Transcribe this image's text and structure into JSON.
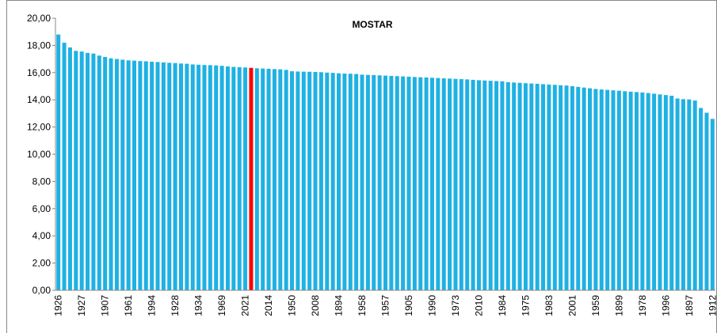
{
  "chart_data": {
    "type": "bar",
    "title": "MOSTAR",
    "categories": [
      "1926",
      null,
      null,
      null,
      "1927",
      null,
      null,
      null,
      "1907",
      null,
      null,
      null,
      "1961",
      null,
      null,
      null,
      "1994",
      null,
      null,
      null,
      "1928",
      null,
      null,
      null,
      "1934",
      null,
      null,
      null,
      "1969",
      null,
      null,
      null,
      "2021",
      null,
      null,
      null,
      "2014",
      null,
      null,
      null,
      "1950",
      null,
      null,
      null,
      "2008",
      null,
      null,
      null,
      "1894",
      null,
      null,
      null,
      "1958",
      null,
      null,
      null,
      "1957",
      null,
      null,
      null,
      "1905",
      null,
      null,
      null,
      "1990",
      null,
      null,
      null,
      "1973",
      null,
      null,
      null,
      "2010",
      null,
      null,
      null,
      "1984",
      null,
      null,
      null,
      "1975",
      null,
      null,
      null,
      "1983",
      null,
      null,
      null,
      "2001",
      null,
      null,
      null,
      "1959",
      null,
      null,
      null,
      "1899",
      null,
      null,
      null,
      "1978",
      null,
      null,
      null,
      "1996",
      null,
      null,
      null,
      "1897",
      null,
      null,
      null,
      "1912"
    ],
    "values": [
      18.8,
      18.2,
      17.85,
      17.6,
      17.55,
      17.45,
      17.4,
      17.25,
      17.15,
      17.05,
      17.0,
      16.95,
      16.9,
      16.88,
      16.85,
      16.83,
      16.8,
      16.78,
      16.75,
      16.72,
      16.7,
      16.67,
      16.65,
      16.6,
      16.58,
      16.56,
      16.55,
      16.53,
      16.5,
      16.45,
      16.42,
      16.4,
      16.38,
      16.35,
      16.32,
      16.3,
      16.28,
      16.26,
      16.24,
      16.2,
      16.1,
      16.08,
      16.07,
      16.06,
      16.05,
      16.03,
      16.0,
      15.98,
      15.95,
      15.93,
      15.92,
      15.9,
      15.85,
      15.83,
      15.82,
      15.8,
      15.78,
      15.76,
      15.74,
      15.72,
      15.7,
      15.68,
      15.66,
      15.64,
      15.62,
      15.6,
      15.58,
      15.56,
      15.54,
      15.52,
      15.5,
      15.47,
      15.44,
      15.42,
      15.4,
      15.38,
      15.36,
      15.3,
      15.27,
      15.25,
      15.22,
      15.2,
      15.18,
      15.15,
      15.12,
      15.1,
      15.07,
      15.05,
      15.0,
      14.95,
      14.9,
      14.85,
      14.8,
      14.76,
      14.73,
      14.7,
      14.67,
      14.63,
      14.6,
      14.57,
      14.54,
      14.5,
      14.45,
      14.4,
      14.35,
      14.3,
      14.1,
      14.05,
      14.03,
      13.95,
      13.4,
      13.05,
      12.6
    ],
    "color": "#1fb1e3",
    "highlight": {
      "index": 33,
      "color": "#ff0000"
    },
    "ylim": [
      0,
      20
    ],
    "yticks": [
      {
        "value": 0,
        "label": "0,00"
      },
      {
        "value": 2,
        "label": "2,00"
      },
      {
        "value": 4,
        "label": "4,00"
      },
      {
        "value": 6,
        "label": "6,00"
      },
      {
        "value": 8,
        "label": "8,00"
      },
      {
        "value": 10,
        "label": "10,00"
      },
      {
        "value": 12,
        "label": "12,00"
      },
      {
        "value": 14,
        "label": "14,00"
      },
      {
        "value": 16,
        "label": "16,00"
      },
      {
        "value": 18,
        "label": "18,00"
      },
      {
        "value": 20,
        "label": "20,00"
      }
    ],
    "grid": false
  }
}
